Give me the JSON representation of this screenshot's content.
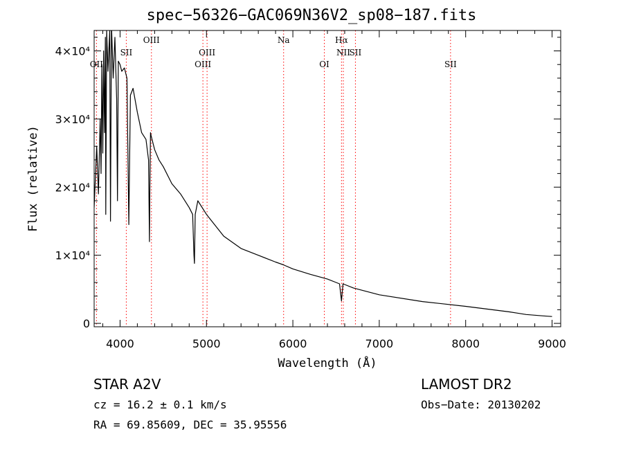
{
  "chart_data": {
    "type": "line",
    "title": "spec−56326−GAC069N36V2_sp08−187.fits",
    "xlabel": "Wavelength (Å)",
    "ylabel": "Flux (relative)",
    "xlim": [
      3700,
      9100
    ],
    "ylim": [
      -500,
      43000
    ],
    "x_ticks": [
      4000,
      5000,
      6000,
      7000,
      8000,
      9000
    ],
    "y_ticks": [
      {
        "value": 0,
        "label": "0"
      },
      {
        "value": 10000,
        "label": "1×10⁴"
      },
      {
        "value": 20000,
        "label": "2×10⁴"
      },
      {
        "value": 30000,
        "label": "3×10⁴"
      },
      {
        "value": 40000,
        "label": "4×10⁴"
      }
    ],
    "grid": false,
    "series": [
      {
        "color": "#000000",
        "x": [
          3700,
          3730,
          3750,
          3770,
          3780,
          3790,
          3800,
          3810,
          3820,
          3830,
          3835,
          3845,
          3860,
          3880,
          3889,
          3900,
          3920,
          3940,
          3960,
          3970,
          3980,
          4000,
          4020,
          4050,
          4080,
          4101,
          4120,
          4150,
          4200,
          4250,
          4300,
          4330,
          4340,
          4345,
          4352,
          4360,
          4400,
          4450,
          4500,
          4600,
          4700,
          4800,
          4840,
          4855,
          4861,
          4870,
          4900,
          5000,
          5200,
          5400,
          5600,
          5800,
          5890,
          6000,
          6200,
          6400,
          6500,
          6540,
          6563,
          6580,
          6700,
          7000,
          7500,
          8000,
          8500,
          8600,
          8700,
          8800,
          8900,
          9000
        ],
        "y": [
          17000,
          26000,
          19000,
          30000,
          22000,
          38000,
          25000,
          40000,
          28000,
          42000,
          16000,
          43000,
          37000,
          43000,
          15000,
          44000,
          36000,
          42000,
          33000,
          18000,
          38500,
          38000,
          37000,
          37500,
          36000,
          14500,
          33500,
          34500,
          31000,
          28000,
          27000,
          24000,
          12000,
          20000,
          28000,
          27500,
          25500,
          24000,
          23000,
          20500,
          19000,
          17000,
          16000,
          10000,
          8800,
          16000,
          18000,
          16000,
          12800,
          11000,
          10000,
          9000,
          8600,
          8000,
          7200,
          6500,
          6000,
          5800,
          3300,
          5800,
          5200,
          4200,
          3200,
          2500,
          1700,
          1500,
          1300,
          1200,
          1100,
          1000
        ]
      }
    ],
    "lines": [
      {
        "label": "OII",
        "x": 3727,
        "label_row": 2
      },
      {
        "label": "SII",
        "x": 4072,
        "label_row": 1
      },
      {
        "label": "OIII",
        "x": 4363,
        "label_row": 0
      },
      {
        "label": "OIII",
        "x": 4959,
        "label_row": 2
      },
      {
        "label": "OIII",
        "x": 5007,
        "label_row": 1
      },
      {
        "label": "Na",
        "x": 5893,
        "label_row": 0
      },
      {
        "label": "OI",
        "x": 6364,
        "label_row": 2
      },
      {
        "label": "Hα",
        "x": 6563,
        "label_row": 0
      },
      {
        "label": "NII",
        "x": 6584,
        "label_row": 1
      },
      {
        "label": "SII",
        "x": 6724,
        "label_row": 1
      },
      {
        "label": "SII",
        "x": 7825,
        "label_row": 2
      }
    ],
    "line_color": "#ff0000"
  },
  "info": {
    "object": "STAR    A2V",
    "survey": "LAMOST DR2",
    "redshift": "cz = 16.2 ± 0.1 km/s",
    "obs_date": "Obs−Date: 20130202",
    "coords": "RA =  69.85609, DEC =  35.95556"
  }
}
